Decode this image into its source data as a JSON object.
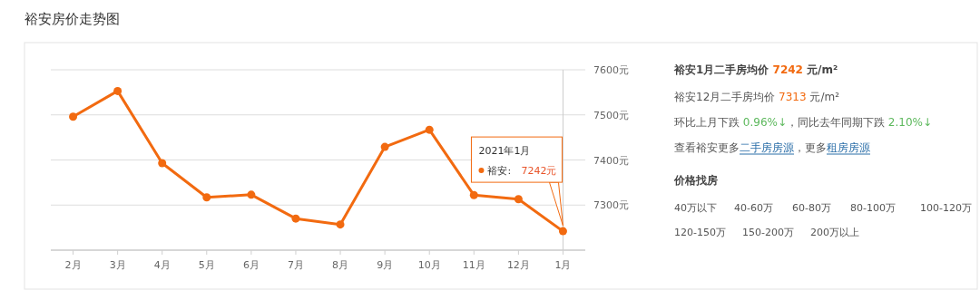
{
  "chart_data": [
    {
      "type": "line",
      "title": "裕安房价走势图",
      "categories": [
        "2月",
        "3月",
        "4月",
        "5月",
        "6月",
        "7月",
        "8月",
        "9月",
        "10月",
        "11月",
        "12月",
        "1月"
      ],
      "series": [
        {
          "color": "#f26a10",
          "values": [
            7496,
            7553,
            7393,
            7317,
            7323,
            7270,
            7257,
            7429,
            7467,
            7322,
            7313,
            7242
          ]
        }
      ],
      "ylim": [
        7200,
        7600
      ],
      "yticks": [
        {
          "value": 7200,
          "label": null
        },
        {
          "value": 7300,
          "label": "7300元"
        },
        {
          "value": 7400,
          "label": "7400元"
        },
        {
          "value": 7500,
          "label": "7500元"
        },
        {
          "value": 7600,
          "label": "7600元"
        }
      ],
      "grid": "y",
      "marker": "circle",
      "line_style": "solid",
      "ref_lines": [
        {
          "axis": "x",
          "value": "1月",
          "color": "#cccccc"
        }
      ],
      "annotations": [
        "2021年1月",
        "裕安:",
        {
          "text": "7242元",
          "x": "1月",
          "y": 7242
        }
      ]
    },
    {
      "type": "other",
      "title": "裕安1月二手房均价 7242 元/m²",
      "annotations": [
        "裕安12月二手房均价 7313 元/m²",
        "环比上月下跌 0.96%↓，同比去年同期下跌 2.10%↓",
        "查看裕安更多",
        "二手房房源",
        "，更多",
        "租房房源",
        "价格找房",
        "40万以下",
        "40-60万",
        "60-80万",
        "80-100万",
        "100-120万",
        "120-150万",
        "150-200万",
        "200万以上"
      ]
    }
  ]
}
